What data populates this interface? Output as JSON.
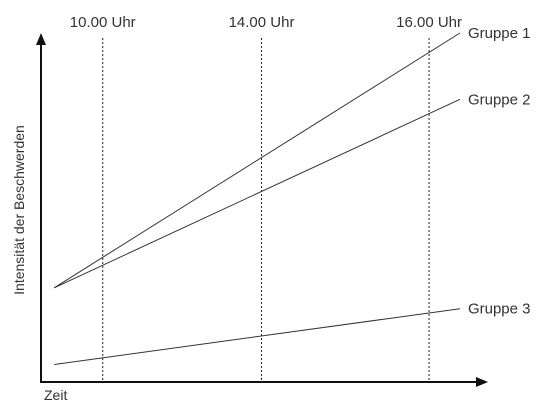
{
  "chart_data": {
    "type": "line",
    "title": "",
    "xlabel": "Zeit",
    "ylabel": "Intensität der Beschwerden",
    "xlim": [
      0,
      1
    ],
    "ylim": [
      0,
      1
    ],
    "grid": false,
    "vertical_markers": [
      {
        "label": "10.00 Uhr",
        "x": 0.14
      },
      {
        "label": "14.00 Uhr",
        "x": 0.5
      },
      {
        "label": "16.00 Uhr",
        "x": 0.88
      }
    ],
    "series": [
      {
        "name": "Gruppe 1",
        "x": [
          0.03,
          0.95
        ],
        "y": [
          0.27,
          1.0
        ]
      },
      {
        "name": "Gruppe 2",
        "x": [
          0.03,
          0.95
        ],
        "y": [
          0.27,
          0.81
        ]
      },
      {
        "name": "Gruppe 3",
        "x": [
          0.03,
          0.95
        ],
        "y": [
          0.05,
          0.21
        ]
      }
    ],
    "colors": {
      "line": "#333333",
      "axis": "#111111",
      "text": "#333333"
    }
  }
}
